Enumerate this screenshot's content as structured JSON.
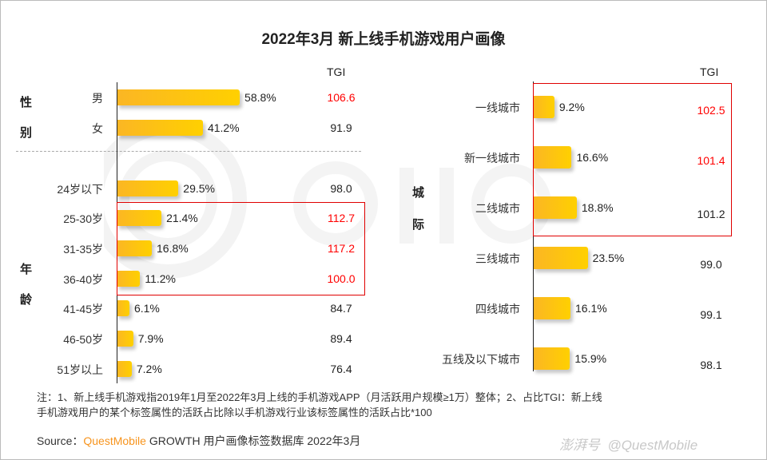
{
  "chart_data": [
    {
      "type": "bar",
      "orientation": "horizontal",
      "title": "2022年3月 新上线手机游戏用户画像",
      "tgi_header": "TGI",
      "groups": [
        {
          "label": [
            "性",
            "别"
          ],
          "categories": [
            "男",
            "女"
          ],
          "values": [
            58.8,
            41.2
          ],
          "value_labels": [
            "58.8%",
            "41.2%"
          ],
          "tgi": [
            "106.6",
            "91.9"
          ],
          "tgi_highlight": [
            true,
            false
          ]
        },
        {
          "label": [
            "年",
            "龄"
          ],
          "categories": [
            "24岁以下",
            "25-30岁",
            "31-35岁",
            "36-40岁",
            "41-45岁",
            "46-50岁",
            "51岁以上"
          ],
          "values": [
            29.5,
            21.4,
            16.8,
            11.2,
            6.1,
            7.9,
            7.2
          ],
          "value_labels": [
            "29.5%",
            "21.4%",
            "16.8%",
            "11.2%",
            "6.1%",
            "7.9%",
            "7.2%"
          ],
          "tgi": [
            "98.0",
            "112.7",
            "117.2",
            "100.0",
            "84.7",
            "89.4",
            "76.4"
          ],
          "tgi_highlight": [
            false,
            true,
            true,
            true,
            false,
            false,
            false
          ]
        }
      ]
    },
    {
      "type": "bar",
      "orientation": "horizontal",
      "tgi_header": "TGI",
      "groups": [
        {
          "label": [
            "城",
            "际"
          ],
          "categories": [
            "一线城市",
            "新一线城市",
            "二线城市",
            "三线城市",
            "四线城市",
            "五线及以下城市"
          ],
          "values": [
            9.2,
            16.6,
            18.8,
            23.5,
            16.1,
            15.9
          ],
          "value_labels": [
            "9.2%",
            "16.6%",
            "18.8%",
            "23.5%",
            "16.1%",
            "15.9%"
          ],
          "tgi": [
            "102.5",
            "101.4",
            "101.2",
            "99.0",
            "99.1",
            "98.1"
          ],
          "tgi_highlight": [
            true,
            true,
            false,
            false,
            false,
            false
          ]
        }
      ]
    }
  ],
  "colors": {
    "bar_start": "#fbb624",
    "bar_end": "#ffd000",
    "highlight": "#ff0000",
    "brand": "#f7941d"
  },
  "notes": {
    "line1": "注：1、新上线手机游戏指2019年1月至2022年3月上线的手机游戏APP（月活跃用户规模≥1万）整体；2、占比TGI：新上线",
    "line2": "手机游戏用户的某个标签属性的活跃占比除以手机游戏行业该标签属性的活跃占比*100"
  },
  "source": {
    "prefix": "Source：",
    "brand": "QuestMobile",
    "rest": " GROWTH 用户画像标签数据库 2022年3月"
  },
  "watermark": {
    "text": "@QuestMobile",
    "logo": "澎湃号",
    "background": "QUEST MOBILE"
  }
}
